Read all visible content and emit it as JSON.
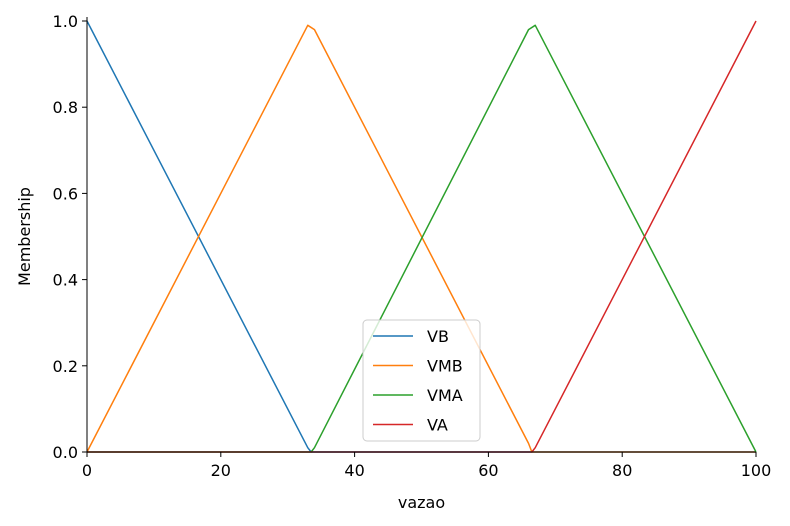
{
  "chart_data": {
    "type": "line",
    "title": "",
    "xlabel": "vazao",
    "ylabel": "Membership",
    "xlim": [
      0,
      100
    ],
    "ylim": [
      0,
      1.0
    ],
    "xticks": [
      0,
      20,
      40,
      60,
      80,
      100
    ],
    "xtick_labels": [
      "0",
      "20",
      "40",
      "60",
      "80",
      "100"
    ],
    "yticks": [
      0.0,
      0.2,
      0.4,
      0.6,
      0.8,
      1.0
    ],
    "ytick_labels": [
      "0.0",
      "0.2",
      "0.4",
      "0.6",
      "0.8",
      "1.0"
    ],
    "grid": false,
    "legend_position": "lower-center",
    "series": [
      {
        "name": "VB",
        "color": "#1f77b4",
        "x": [
          0,
          33,
          33.5,
          100
        ],
        "y": [
          1.0,
          0.01,
          0.0,
          0.0
        ]
      },
      {
        "name": "VMB",
        "color": "#ff7f0e",
        "x": [
          0,
          33,
          34,
          66,
          66.5,
          100
        ],
        "y": [
          0.0,
          0.99,
          0.98,
          0.02,
          0.0,
          0.0
        ]
      },
      {
        "name": "VMA",
        "color": "#2ca02c",
        "x": [
          0,
          33.5,
          34,
          66,
          67,
          100
        ],
        "y": [
          0.0,
          0.0,
          0.01,
          0.98,
          0.99,
          0.0
        ]
      },
      {
        "name": "VA",
        "color": "#d62728",
        "x": [
          0,
          66.5,
          67,
          100
        ],
        "y": [
          0.0,
          0.0,
          0.01,
          1.0
        ]
      }
    ]
  }
}
